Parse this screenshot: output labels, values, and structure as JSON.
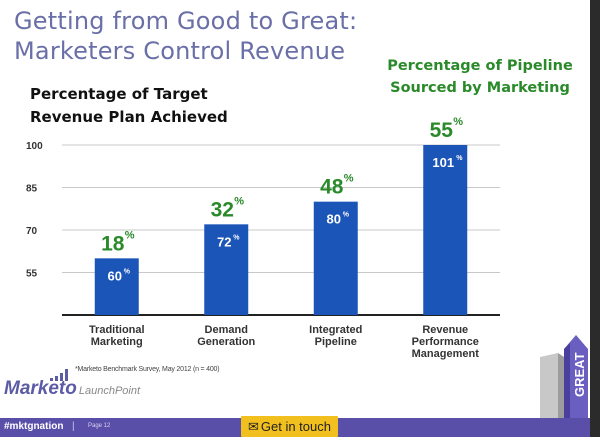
{
  "slide": {
    "title_line1": "Getting from Good to Great:",
    "title_line2": "Marketers Control Revenue",
    "left_heading_line1": "Percentage of Target",
    "left_heading_line2": "Revenue Plan Achieved",
    "right_heading_line1": "Percentage of Pipeline",
    "right_heading_line2": "Sourced by Marketing",
    "footnote": "*Marketo Benchmark Survey, May 2012 (n = 400)",
    "logo_brand": "Marketo",
    "logo_sub": "LaunchPoint",
    "hashtag": "#mktgnation",
    "separator": "|",
    "page_label": "Page 12",
    "cta_icon": "envelope-icon",
    "cta_label": "Get in touch",
    "building_label": "GREAT"
  },
  "colors": {
    "title": "#6a6fa8",
    "bar": "#1c55b8",
    "pipeline_label": "#2a8a2a",
    "footer": "#5a4fa8",
    "cta": "#f2c01e"
  },
  "chart_data": {
    "type": "bar",
    "title": "Percentage of Target Revenue Plan Achieved",
    "secondary_title": "Percentage of Pipeline Sourced by Marketing",
    "categories": [
      [
        "Traditional",
        "Marketing"
      ],
      [
        "Demand",
        "Generation"
      ],
      [
        "Integrated",
        "Pipeline"
      ],
      [
        "Revenue",
        "Performance",
        "Management"
      ]
    ],
    "series": [
      {
        "name": "Percentage of Target Revenue Plan Achieved",
        "values": [
          60,
          72,
          80,
          101
        ],
        "labels": [
          "60",
          "72",
          "80",
          "101"
        ]
      },
      {
        "name": "Percentage of Pipeline Sourced by Marketing",
        "values": [
          18,
          32,
          48,
          55
        ],
        "labels": [
          "18",
          "32",
          "48",
          "55"
        ]
      }
    ],
    "percent_sign": "%",
    "yticks": [
      55,
      70,
      85,
      100
    ],
    "ytick_labels": [
      "55",
      "70",
      "85",
      "100"
    ],
    "ylim": [
      40,
      100
    ],
    "grid": true,
    "xlabel": "",
    "ylabel": ""
  }
}
